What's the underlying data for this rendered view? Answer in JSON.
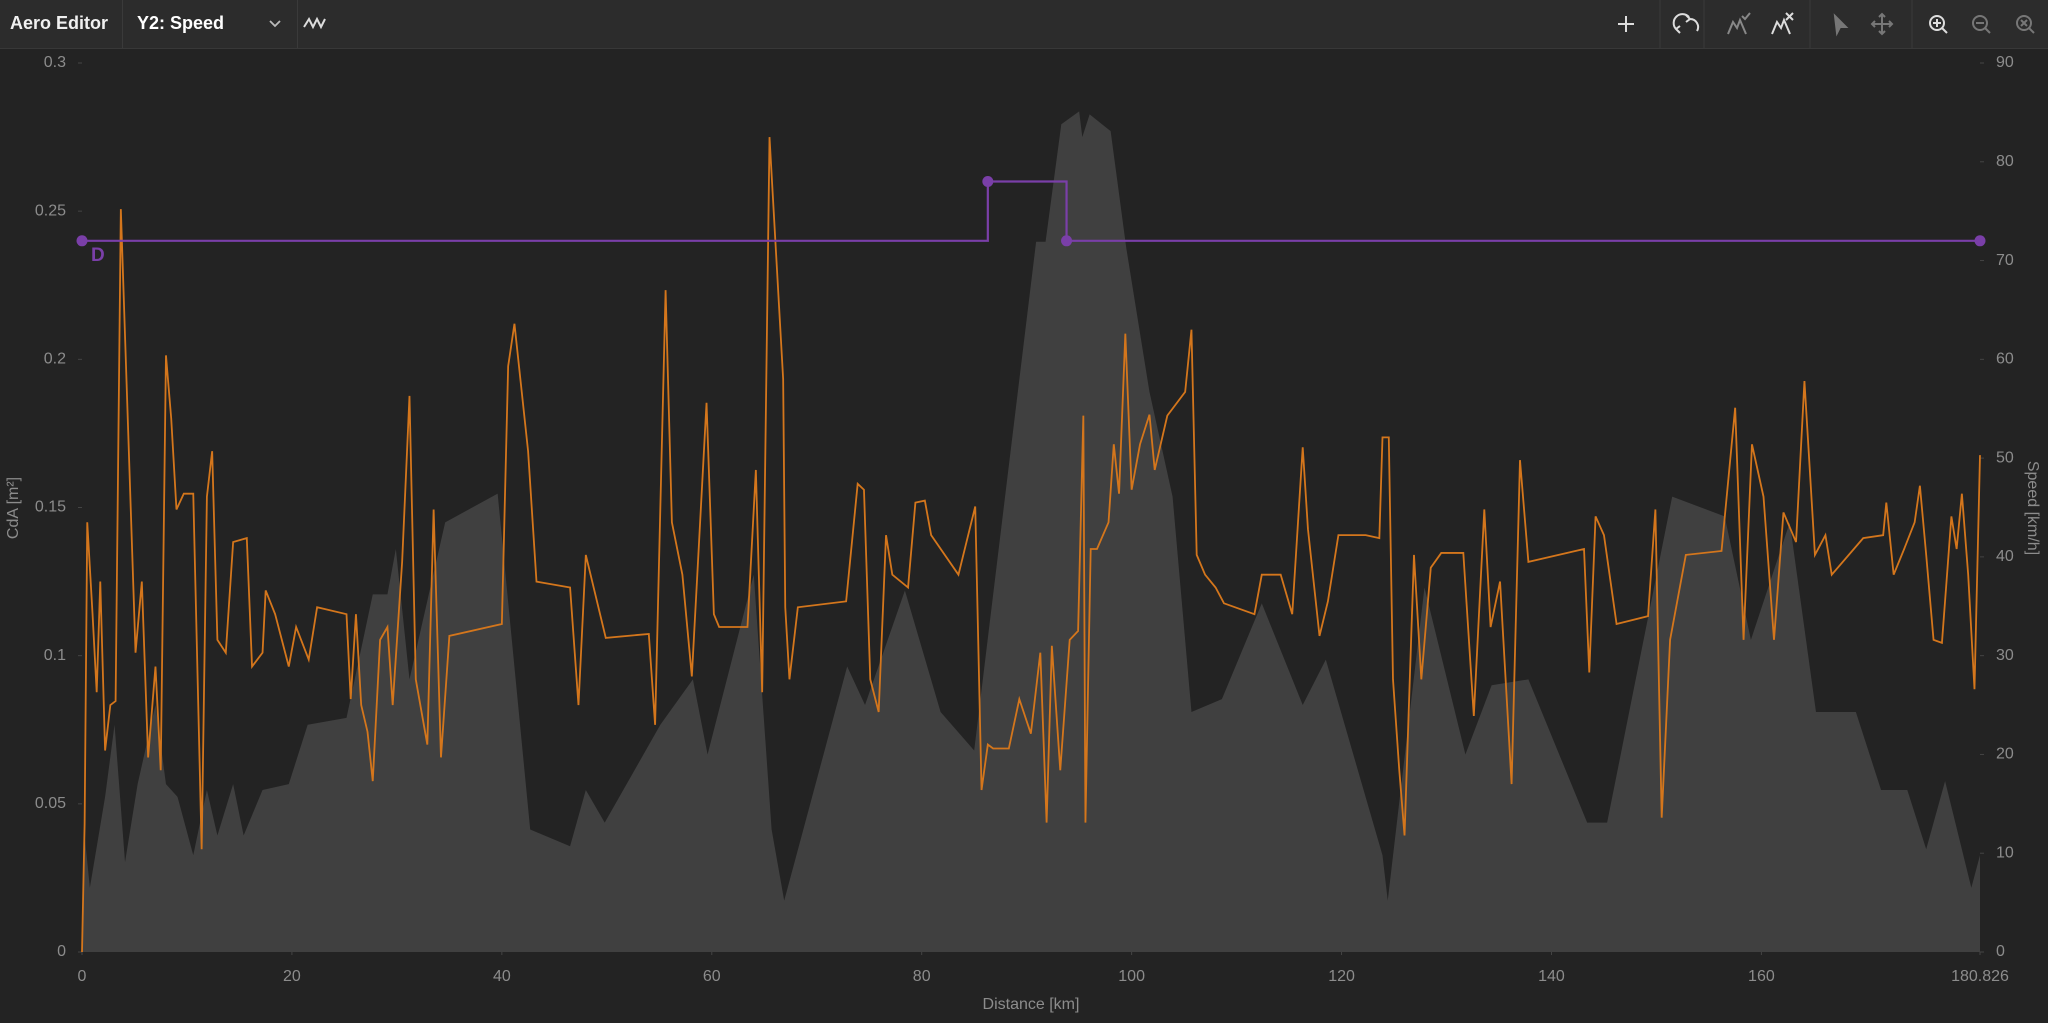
{
  "toolbar": {
    "title": "Aero Editor",
    "y2_select": "Y2: Speed"
  },
  "chart_data": {
    "type": "line",
    "xlabel": "Distance [km]",
    "ylabel": "CdA [m²]",
    "y2label": "Speed [km/h]",
    "xlim": [
      0,
      180.826
    ],
    "xticks": [
      0,
      20,
      40,
      60,
      80,
      100,
      120,
      140,
      160,
      180.826
    ],
    "ylim": [
      0,
      0.3
    ],
    "yticks": [
      0,
      0.05,
      0.1,
      0.15,
      0.2,
      0.25,
      0.3
    ],
    "y2lim": [
      0,
      90
    ],
    "y2ticks": [
      0,
      10,
      20,
      30,
      40,
      50,
      60,
      70,
      80,
      90
    ],
    "grid": false,
    "series": [
      {
        "type": "area",
        "axis": "y2",
        "color": "#404040",
        "x": [
          0,
          0.25,
          0.75,
          2.2,
          3.1,
          4.1,
          5.3,
          7,
          8,
          9.1,
          10.6,
          11.9,
          12.9,
          14.4,
          15.4,
          17.2,
          19.7,
          21.5,
          25.2,
          27.7,
          29.1,
          29.9,
          31.2,
          34.6,
          39.6,
          42.7,
          46.5,
          48,
          49.8,
          55.1,
          58.2,
          59.6,
          64,
          65.7,
          66.9,
          72.9,
          74.6,
          78.4,
          81.8,
          85,
          88.4,
          90.9,
          91.8,
          93.3,
          95,
          95.3,
          96,
          98,
          99.5,
          101.7,
          103.9,
          105.7,
          108.6,
          112.4,
          116.3,
          118.5,
          123.9,
          124.4,
          127.9,
          131.8,
          134.3,
          137.8,
          143.4,
          145.3,
          151.5,
          156.5,
          159,
          162.7,
          165.2,
          169,
          171.4,
          173.9,
          175.7,
          177.5,
          180,
          180.826
        ],
        "values": [
          0,
          11.8,
          6.5,
          15.7,
          23,
          9.1,
          17,
          25,
          17,
          15.7,
          9.8,
          16.4,
          11.8,
          17,
          11.8,
          16.4,
          17,
          23,
          23.7,
          36.2,
          36.2,
          40.8,
          27.6,
          43.5,
          46.4,
          12.4,
          10.7,
          16.4,
          13.1,
          23,
          27.6,
          20,
          38.2,
          12.4,
          5.2,
          28.9,
          25,
          36.6,
          24.3,
          20.4,
          50.1,
          71.9,
          71.9,
          83.8,
          85.1,
          82.5,
          84.8,
          83.1,
          71.2,
          56.7,
          46.1,
          24.3,
          25.6,
          35.3,
          25,
          29.6,
          9.8,
          5.2,
          36.9,
          20,
          27,
          27.6,
          13.1,
          13.1,
          46.1,
          44.1,
          31.6,
          43.5,
          24.3,
          24.3,
          16.4,
          16.4,
          10.4,
          17.3,
          6.5,
          9.8
        ]
      },
      {
        "type": "line",
        "axis": "y2",
        "color": "#d4761c",
        "x": [
          0,
          0.25,
          0.5,
          1,
          1.4,
          1.74,
          2.2,
          2.7,
          3.2,
          3.7,
          4.4,
          5.1,
          5.7,
          6.3,
          7,
          7.5,
          8,
          8.5,
          9,
          9.7,
          10.6,
          11.4,
          11.9,
          12.4,
          12.9,
          13.7,
          14.4,
          15.7,
          16.2,
          17.2,
          17.5,
          18.4,
          19.7,
          20.4,
          21.6,
          22.4,
          25.2,
          25.6,
          26.1,
          26.6,
          27.2,
          27.7,
          28.4,
          29.1,
          29.6,
          30.5,
          31.2,
          31.8,
          32.9,
          33.5,
          34.2,
          35,
          40,
          40.6,
          41.2,
          42.5,
          43.3,
          46.5,
          47.3,
          48,
          49.9,
          54,
          54.6,
          55.6,
          56.2,
          57.2,
          58.1,
          59.5,
          60.2,
          60.7,
          63.4,
          64.2,
          64.8,
          65.5,
          66.8,
          67,
          67.4,
          68.2,
          72.8,
          73.9,
          74.5,
          75.1,
          75.9,
          76.6,
          77.2,
          78.7,
          79.4,
          80.3,
          80.9,
          83.5,
          85.1,
          85.7,
          86.3,
          86.8,
          88.3,
          89.3,
          90.4,
          91.3,
          91.9,
          92.4,
          93.2,
          94.1,
          94.9,
          95.4,
          95.6,
          96.1,
          96.7,
          97.8,
          98.3,
          98.8,
          99.4,
          100,
          100.8,
          101.7,
          102.2,
          103.4,
          105.1,
          105.7,
          106.2,
          107,
          108,
          108.8,
          111.7,
          112.4,
          114.2,
          115.3,
          116.3,
          116.8,
          117.9,
          118.7,
          119.7,
          121.4,
          122.3,
          123.6,
          123.9,
          124.5,
          124.9,
          125.5,
          126,
          126.9,
          127.6,
          128.5,
          129.5,
          131.6,
          132.6,
          133.6,
          134.2,
          135.1,
          136.2,
          137,
          137.8,
          143.1,
          143.6,
          144.2,
          145,
          146.2,
          149.2,
          149.9,
          150.5,
          151.3,
          152.8,
          156.2,
          157.5,
          158.3,
          159.1,
          160.2,
          161.2,
          162.1,
          163.3,
          164.1,
          165.1,
          166.1,
          166.7,
          169.7,
          171.6,
          171.9,
          172.6,
          173.6,
          174.6,
          175.1,
          175.7,
          176.4,
          177.2,
          178.1,
          178.6,
          179.1,
          179.7,
          180.3,
          180.826
        ],
        "values": [
          0,
          13,
          43.5,
          34.3,
          26.3,
          37.5,
          20.4,
          25,
          25.4,
          75.2,
          52.7,
          30.3,
          37.5,
          19.7,
          28.9,
          18.4,
          60.4,
          54,
          44.8,
          46.4,
          46.4,
          10.4,
          46.1,
          50.7,
          31.6,
          30.3,
          41.5,
          41.9,
          28.9,
          30.3,
          36.6,
          34.2,
          28.9,
          32.9,
          29.6,
          34.9,
          34.2,
          25.6,
          34.2,
          25,
          22.3,
          17.3,
          31.6,
          32.9,
          25,
          39.5,
          56.3,
          27.6,
          21,
          44.8,
          19.7,
          32,
          33.2,
          59.3,
          63.6,
          50.7,
          37.5,
          36.9,
          25,
          40.2,
          31.8,
          32.2,
          23,
          67,
          43.5,
          38.2,
          27.9,
          55.6,
          34.2,
          32.9,
          32.9,
          48.8,
          26.3,
          82.5,
          58,
          34.9,
          27.6,
          34.9,
          35.5,
          47.4,
          46.8,
          27.6,
          24.3,
          42.2,
          38.2,
          36.9,
          45.5,
          45.7,
          42.2,
          38.2,
          45.1,
          16.4,
          21,
          20.6,
          20.6,
          25.6,
          22.1,
          30.3,
          13.1,
          31,
          18.4,
          31.6,
          32.5,
          54.3,
          13.1,
          40.8,
          40.8,
          43.5,
          51.4,
          46.4,
          62.6,
          46.8,
          51.4,
          54.4,
          48.8,
          54.3,
          56.7,
          63,
          40.2,
          38.2,
          36.9,
          35.3,
          34.2,
          38.2,
          38.2,
          34.2,
          51.1,
          42.8,
          32,
          35.5,
          42.2,
          42.2,
          42.2,
          41.9,
          52.1,
          52.1,
          27.6,
          18.4,
          11.8,
          40.2,
          27.6,
          38.9,
          40.4,
          40.4,
          23.9,
          44.8,
          32.9,
          37.5,
          17,
          49.8,
          39.5,
          40.8,
          28.3,
          44.1,
          42.2,
          33.2,
          34,
          44.8,
          13.6,
          31.6,
          40.2,
          40.6,
          55.1,
          31.6,
          51.4,
          46.1,
          31.6,
          44.5,
          41.5,
          57.8,
          40.2,
          42.2,
          38.2,
          41.9,
          42.2,
          45.5,
          38.2,
          40.8,
          43.5,
          47.2,
          40.2,
          31.6,
          31.3,
          44.1,
          40.8,
          46.4,
          38.2,
          26.6,
          50.3
        ]
      },
      {
        "type": "step",
        "axis": "y",
        "color": "#7a3fa8",
        "label": "D",
        "x": [
          0,
          86.3,
          93.8,
          180.826
        ],
        "values": [
          0.24,
          0.26,
          0.24,
          0.24
        ]
      }
    ]
  }
}
